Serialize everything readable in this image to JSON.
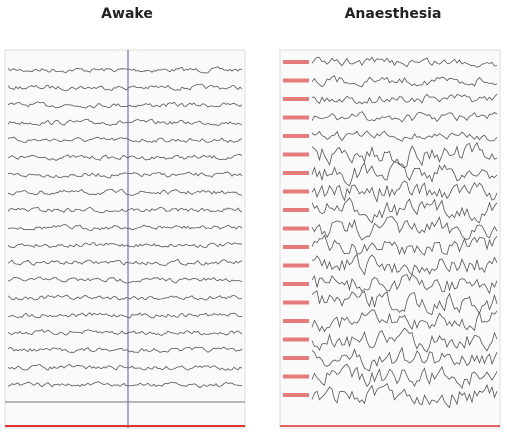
{
  "panels": [
    {
      "title": "Awake"
    },
    {
      "title": "Anaesthesia"
    }
  ]
}
